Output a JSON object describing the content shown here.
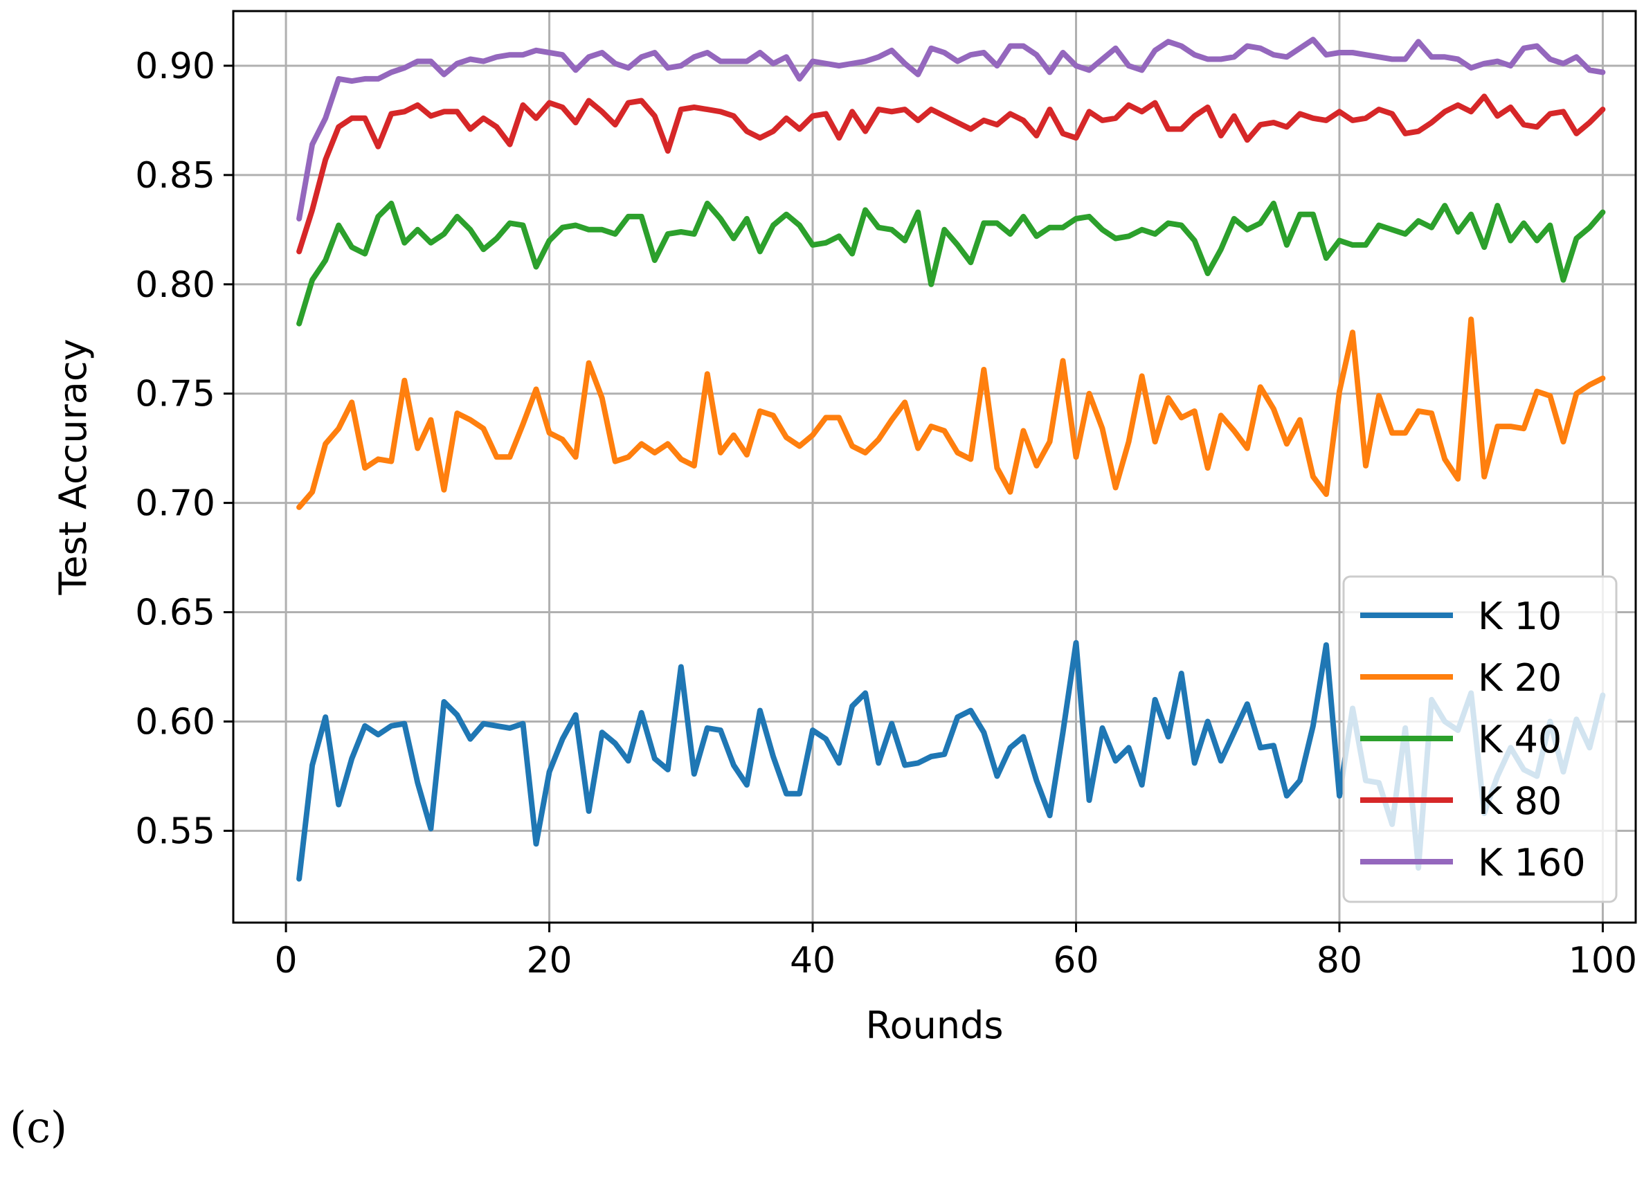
{
  "chart_data": {
    "type": "line",
    "title": "",
    "xlabel": "Rounds",
    "ylabel": "Test Accuracy",
    "xlim": [
      -4,
      102.5
    ],
    "ylim": [
      0.508,
      0.925
    ],
    "xticks": [
      0,
      20,
      40,
      60,
      80,
      100
    ],
    "yticks": [
      0.55,
      0.6,
      0.65,
      0.7,
      0.75,
      0.8,
      0.85,
      0.9
    ],
    "grid": true,
    "legend_position": "lower-right",
    "series": [
      {
        "name": "K 10",
        "color": "#1f77b4",
        "values": [
          0.528,
          0.58,
          0.602,
          0.562,
          0.583,
          0.598,
          0.594,
          0.598,
          0.599,
          0.572,
          0.551,
          0.609,
          0.603,
          0.592,
          0.599,
          0.598,
          0.597,
          0.599,
          0.544,
          0.577,
          0.592,
          0.603,
          0.559,
          0.595,
          0.59,
          0.582,
          0.604,
          0.583,
          0.578,
          0.625,
          0.576,
          0.597,
          0.596,
          0.58,
          0.571,
          0.605,
          0.584,
          0.567,
          0.567,
          0.596,
          0.592,
          0.581,
          0.607,
          0.613,
          0.581,
          0.599,
          0.58,
          0.581,
          0.584,
          0.585,
          0.602,
          0.605,
          0.595,
          0.575,
          0.588,
          0.593,
          0.573,
          0.557,
          0.595,
          0.636,
          0.564,
          0.597,
          0.582,
          0.588,
          0.571,
          0.61,
          0.593,
          0.622,
          0.581,
          0.6,
          0.582,
          0.595,
          0.608,
          0.588,
          0.589,
          0.566,
          0.573,
          0.598,
          0.635,
          0.566,
          0.606,
          0.573,
          0.572,
          0.553,
          0.597,
          0.533,
          0.61,
          0.6,
          0.596,
          0.613,
          0.558,
          0.575,
          0.588,
          0.578,
          0.575,
          0.6,
          0.577,
          0.601,
          0.588,
          0.612
        ]
      },
      {
        "name": "K 20",
        "color": "#ff7f0e",
        "values": [
          0.698,
          0.705,
          0.727,
          0.734,
          0.746,
          0.716,
          0.72,
          0.719,
          0.756,
          0.725,
          0.738,
          0.706,
          0.741,
          0.738,
          0.734,
          0.721,
          0.721,
          0.736,
          0.752,
          0.732,
          0.729,
          0.721,
          0.764,
          0.748,
          0.719,
          0.721,
          0.727,
          0.723,
          0.727,
          0.72,
          0.717,
          0.759,
          0.723,
          0.731,
          0.722,
          0.742,
          0.74,
          0.73,
          0.726,
          0.731,
          0.739,
          0.739,
          0.726,
          0.723,
          0.729,
          0.738,
          0.746,
          0.725,
          0.735,
          0.733,
          0.723,
          0.72,
          0.761,
          0.716,
          0.705,
          0.733,
          0.717,
          0.728,
          0.765,
          0.721,
          0.75,
          0.734,
          0.707,
          0.728,
          0.758,
          0.728,
          0.748,
          0.739,
          0.742,
          0.716,
          0.74,
          0.733,
          0.725,
          0.753,
          0.743,
          0.727,
          0.738,
          0.712,
          0.704,
          0.751,
          0.778,
          0.717,
          0.749,
          0.732,
          0.732,
          0.742,
          0.741,
          0.72,
          0.711,
          0.784,
          0.712,
          0.735,
          0.735,
          0.734,
          0.751,
          0.749,
          0.728,
          0.75,
          0.754,
          0.757
        ]
      },
      {
        "name": "K 40",
        "color": "#2ca02c",
        "values": [
          0.782,
          0.802,
          0.811,
          0.827,
          0.817,
          0.814,
          0.831,
          0.837,
          0.819,
          0.825,
          0.819,
          0.823,
          0.831,
          0.825,
          0.816,
          0.821,
          0.828,
          0.827,
          0.808,
          0.82,
          0.826,
          0.827,
          0.825,
          0.825,
          0.823,
          0.831,
          0.831,
          0.811,
          0.823,
          0.824,
          0.823,
          0.837,
          0.83,
          0.821,
          0.83,
          0.815,
          0.827,
          0.832,
          0.827,
          0.818,
          0.819,
          0.822,
          0.814,
          0.834,
          0.826,
          0.825,
          0.82,
          0.833,
          0.8,
          0.825,
          0.818,
          0.81,
          0.828,
          0.828,
          0.823,
          0.831,
          0.822,
          0.826,
          0.826,
          0.83,
          0.831,
          0.825,
          0.821,
          0.822,
          0.825,
          0.823,
          0.828,
          0.827,
          0.82,
          0.805,
          0.816,
          0.83,
          0.825,
          0.828,
          0.837,
          0.818,
          0.832,
          0.832,
          0.812,
          0.82,
          0.818,
          0.818,
          0.827,
          0.825,
          0.823,
          0.829,
          0.826,
          0.836,
          0.824,
          0.832,
          0.817,
          0.836,
          0.82,
          0.828,
          0.82,
          0.827,
          0.802,
          0.821,
          0.826,
          0.833
        ]
      },
      {
        "name": "K 80",
        "color": "#d62728",
        "values": [
          0.815,
          0.834,
          0.857,
          0.872,
          0.876,
          0.876,
          0.863,
          0.878,
          0.879,
          0.882,
          0.877,
          0.879,
          0.879,
          0.871,
          0.876,
          0.872,
          0.864,
          0.882,
          0.876,
          0.883,
          0.881,
          0.874,
          0.884,
          0.879,
          0.873,
          0.883,
          0.884,
          0.877,
          0.861,
          0.88,
          0.881,
          0.88,
          0.879,
          0.877,
          0.87,
          0.867,
          0.87,
          0.876,
          0.871,
          0.877,
          0.878,
          0.867,
          0.879,
          0.87,
          0.88,
          0.879,
          0.88,
          0.875,
          0.88,
          0.877,
          0.874,
          0.871,
          0.875,
          0.873,
          0.878,
          0.875,
          0.868,
          0.88,
          0.869,
          0.867,
          0.879,
          0.875,
          0.876,
          0.882,
          0.879,
          0.883,
          0.871,
          0.871,
          0.877,
          0.881,
          0.868,
          0.877,
          0.866,
          0.873,
          0.874,
          0.872,
          0.878,
          0.876,
          0.875,
          0.879,
          0.875,
          0.876,
          0.88,
          0.878,
          0.869,
          0.87,
          0.874,
          0.879,
          0.882,
          0.879,
          0.886,
          0.877,
          0.881,
          0.873,
          0.872,
          0.878,
          0.879,
          0.869,
          0.874,
          0.88
        ]
      },
      {
        "name": "K 160",
        "color": "#9467bd",
        "values": [
          0.83,
          0.864,
          0.876,
          0.894,
          0.893,
          0.894,
          0.894,
          0.897,
          0.899,
          0.902,
          0.902,
          0.896,
          0.901,
          0.903,
          0.902,
          0.904,
          0.905,
          0.905,
          0.907,
          0.906,
          0.905,
          0.898,
          0.904,
          0.906,
          0.901,
          0.899,
          0.904,
          0.906,
          0.899,
          0.9,
          0.904,
          0.906,
          0.902,
          0.902,
          0.902,
          0.906,
          0.901,
          0.904,
          0.894,
          0.902,
          0.901,
          0.9,
          0.901,
          0.902,
          0.904,
          0.907,
          0.901,
          0.896,
          0.908,
          0.906,
          0.902,
          0.905,
          0.906,
          0.9,
          0.909,
          0.909,
          0.905,
          0.897,
          0.906,
          0.9,
          0.898,
          0.903,
          0.908,
          0.9,
          0.898,
          0.907,
          0.911,
          0.909,
          0.905,
          0.903,
          0.903,
          0.904,
          0.909,
          0.908,
          0.905,
          0.904,
          0.908,
          0.912,
          0.905,
          0.906,
          0.906,
          0.905,
          0.904,
          0.903,
          0.903,
          0.911,
          0.904,
          0.904,
          0.903,
          0.899,
          0.901,
          0.902,
          0.9,
          0.908,
          0.909,
          0.903,
          0.901,
          0.904,
          0.898,
          0.897
        ]
      }
    ]
  },
  "panel_label": "(c)"
}
